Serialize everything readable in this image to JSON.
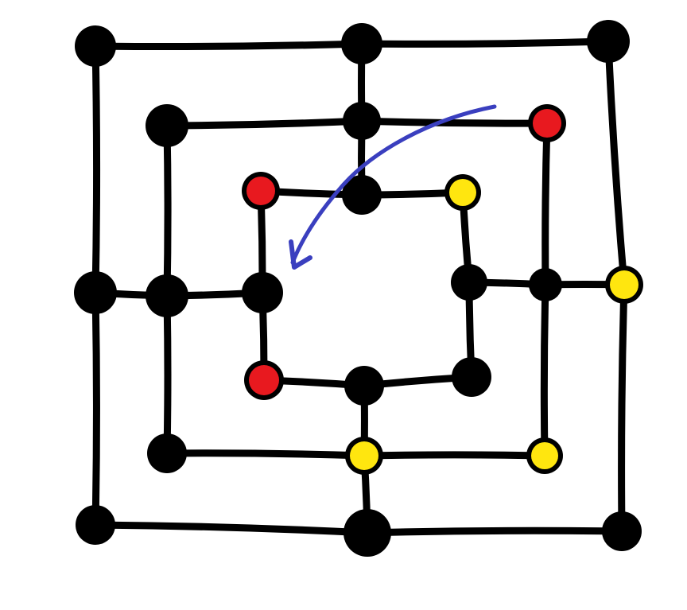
{
  "game": {
    "colors": {
      "line": "#000000",
      "empty_point": "#000000",
      "red_piece": "#e8191f",
      "yellow_piece": "#ffe60f",
      "arrow": "#3a3fbf",
      "background": "#ffffff"
    },
    "points": [
      {
        "id": "outer-top-left",
        "state": "empty"
      },
      {
        "id": "outer-top-middle",
        "state": "empty"
      },
      {
        "id": "outer-top-right",
        "state": "empty"
      },
      {
        "id": "outer-middle-right",
        "state": "yellow"
      },
      {
        "id": "outer-bottom-right",
        "state": "empty"
      },
      {
        "id": "outer-bottom-middle",
        "state": "empty"
      },
      {
        "id": "outer-bottom-left",
        "state": "empty"
      },
      {
        "id": "outer-middle-left",
        "state": "empty"
      },
      {
        "id": "middle-top-left",
        "state": "empty"
      },
      {
        "id": "middle-top-middle",
        "state": "empty"
      },
      {
        "id": "middle-top-right",
        "state": "red"
      },
      {
        "id": "middle-middle-right",
        "state": "empty"
      },
      {
        "id": "middle-bottom-right",
        "state": "yellow"
      },
      {
        "id": "middle-bottom-middle",
        "state": "yellow"
      },
      {
        "id": "middle-bottom-left",
        "state": "empty"
      },
      {
        "id": "middle-middle-left",
        "state": "empty"
      },
      {
        "id": "inner-top-left",
        "state": "red"
      },
      {
        "id": "inner-top-middle",
        "state": "empty"
      },
      {
        "id": "inner-top-right",
        "state": "yellow"
      },
      {
        "id": "inner-middle-right",
        "state": "empty"
      },
      {
        "id": "inner-bottom-right",
        "state": "empty"
      },
      {
        "id": "inner-bottom-middle",
        "state": "empty"
      },
      {
        "id": "inner-bottom-left",
        "state": "red"
      },
      {
        "id": "inner-middle-left",
        "state": "empty"
      }
    ]
  }
}
